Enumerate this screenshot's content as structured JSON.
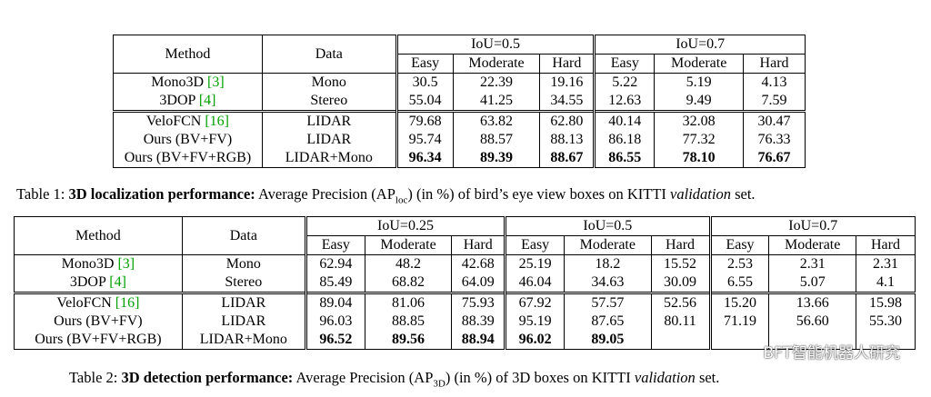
{
  "table1": {
    "header": {
      "method": "Method",
      "data": "Data",
      "iou1": "IoU=0.5",
      "iou2": "IoU=0.7",
      "easy": "Easy",
      "moderate": "Moderate",
      "hard": "Hard"
    },
    "rows": [
      {
        "method": "Mono3D ",
        "ref": "[3]",
        "data": "Mono",
        "v": [
          "30.5",
          "22.39",
          "19.16",
          "5.22",
          "5.19",
          "4.13"
        ]
      },
      {
        "method": "3DOP ",
        "ref": "[4]",
        "data": "Stereo",
        "v": [
          "55.04",
          "41.25",
          "34.55",
          "12.63",
          "9.49",
          "7.59"
        ]
      },
      {
        "method": "VeloFCN ",
        "ref": "[16]",
        "data": "LIDAR",
        "v": [
          "79.68",
          "63.82",
          "62.80",
          "40.14",
          "32.08",
          "30.47"
        ]
      },
      {
        "method": "Ours (BV+FV)",
        "ref": "",
        "data": "LIDAR",
        "v": [
          "95.74",
          "88.57",
          "88.13",
          "86.18",
          "77.32",
          "76.33"
        ]
      },
      {
        "method": "Ours (BV+FV+RGB)",
        "ref": "",
        "data": "LIDAR+Mono",
        "v": [
          "96.34",
          "89.39",
          "88.67",
          "86.55",
          "78.10",
          "76.67"
        ]
      }
    ],
    "caption": {
      "label": "Table 1: ",
      "bold": "3D localization performance:",
      "pre": " Average Precision (AP",
      "sub": "loc",
      "post": ") (in %) of bird’s eye view boxes on KITTI ",
      "ital": "validation",
      "end": " set."
    }
  },
  "table2": {
    "header": {
      "method": "Method",
      "data": "Data",
      "iou1": "IoU=0.25",
      "iou2": "IoU=0.5",
      "iou3": "IoU=0.7",
      "easy": "Easy",
      "moderate": "Moderate",
      "hard": "Hard"
    },
    "rows": [
      {
        "method": "Mono3D ",
        "ref": "[3]",
        "data": "Mono",
        "v": [
          "62.94",
          "48.2",
          "42.68",
          "25.19",
          "18.2",
          "15.52",
          "2.53",
          "2.31",
          "2.31"
        ]
      },
      {
        "method": "3DOP ",
        "ref": "[4]",
        "data": "Stereo",
        "v": [
          "85.49",
          "68.82",
          "64.09",
          "46.04",
          "34.63",
          "30.09",
          "6.55",
          "5.07",
          "4.1"
        ]
      },
      {
        "method": "VeloFCN ",
        "ref": "[16]",
        "data": "LIDAR",
        "v": [
          "89.04",
          "81.06",
          "75.93",
          "67.92",
          "57.57",
          "52.56",
          "15.20",
          "13.66",
          "15.98"
        ]
      },
      {
        "method": "Ours (BV+FV)",
        "ref": "",
        "data": "LIDAR",
        "v": [
          "96.03",
          "88.85",
          "88.39",
          "95.19",
          "87.65",
          "80.11",
          "71.19",
          "56.60",
          "55.30"
        ]
      },
      {
        "method": "Ours (BV+FV+RGB)",
        "ref": "",
        "data": "LIDAR+Mono",
        "v": [
          "96.52",
          "89.56",
          "88.94",
          "96.02",
          "89.05",
          "",
          "",
          "",
          ""
        ]
      }
    ],
    "caption": {
      "label": "Table 2: ",
      "bold": "3D detection performance:",
      "pre": " Average Precision (AP",
      "sub": "3D",
      "post": ") (in %) of 3D boxes on KITTI ",
      "ital": "validation",
      "end": " set."
    }
  },
  "watermark": "BFT智能机器人研究"
}
